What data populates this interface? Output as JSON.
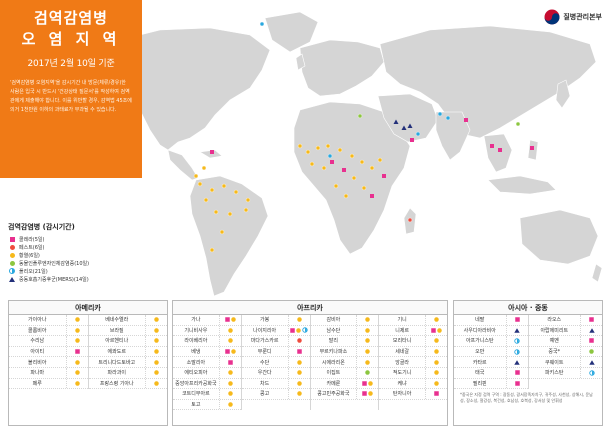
{
  "title": {
    "line1": "검역감염병",
    "line2": "오 염 지 역",
    "date": "2017년 2월 10일 기준",
    "description": "'검역감염병 오염지역'을 감시기간 내 방문(체류/경유)한 사람은 입국 시 반드시 '건강상태 질문서'를 작성하여 검역관에게 제출해야 합니다. 이를 위반할 경우, 감역법 45조에 의거 1천만원 이하의 과태료가 부과될 수 있습니다."
  },
  "logo": {
    "text": "질병관리본부"
  },
  "legend": {
    "title": "검역감염병 (감시기간)",
    "items": [
      {
        "symbol": "cholera",
        "label": "콜레라(5일)"
      },
      {
        "symbol": "pest",
        "label": "페스트(6일)"
      },
      {
        "symbol": "yellow_fever",
        "label": "황열(6일)"
      },
      {
        "symbol": "avian_flu",
        "label": "동물인플루엔자인체감염증(10일)"
      },
      {
        "symbol": "polio",
        "label": "폴리오(21일)"
      },
      {
        "symbol": "mers",
        "label": "중동호흡기증후군(MERS)(14일)"
      }
    ]
  },
  "colors": {
    "cholera": "#e8308f",
    "pest": "#ef4c3d",
    "yellow_fever": "#f6b91b",
    "avian_flu": "#8cc63f",
    "polio": "#29a8df",
    "mers": "#23307a",
    "title_panel": "#f07a16",
    "map_land": "#d5d5d5"
  },
  "americas": {
    "header": "아메리카",
    "columns": [
      [
        {
          "name": "가이아나",
          "symbols": [
            "yellow_fever"
          ]
        },
        {
          "name": "콜롬비아",
          "symbols": [
            "yellow_fever"
          ]
        },
        {
          "name": "수리남",
          "symbols": [
            "yellow_fever"
          ]
        },
        {
          "name": "아이티",
          "symbols": [
            "cholera"
          ]
        },
        {
          "name": "볼리비아",
          "symbols": [
            "yellow_fever"
          ]
        },
        {
          "name": "파나마",
          "symbols": [
            "yellow_fever"
          ]
        },
        {
          "name": "페루",
          "symbols": [
            "yellow_fever"
          ]
        }
      ],
      [
        {
          "name": "베네수엘라",
          "symbols": [
            "yellow_fever"
          ]
        },
        {
          "name": "브라질",
          "symbols": [
            "yellow_fever"
          ]
        },
        {
          "name": "아르헨티나",
          "symbols": [
            "yellow_fever"
          ]
        },
        {
          "name": "에콰도르",
          "symbols": [
            "yellow_fever"
          ]
        },
        {
          "name": "트리니다드토바고",
          "symbols": [
            "yellow_fever"
          ]
        },
        {
          "name": "파라과이",
          "symbols": [
            "yellow_fever"
          ]
        },
        {
          "name": "프랑스령 기아나",
          "symbols": [
            "yellow_fever"
          ]
        }
      ]
    ]
  },
  "africa": {
    "header": "아프리카",
    "columns": [
      [
        {
          "name": "가나",
          "symbols": [
            "cholera",
            "yellow_fever"
          ]
        },
        {
          "name": "기니비사우",
          "symbols": [
            "yellow_fever"
          ]
        },
        {
          "name": "라이베리아",
          "symbols": [
            "yellow_fever"
          ]
        },
        {
          "name": "베냉",
          "symbols": [
            "cholera",
            "yellow_fever"
          ]
        },
        {
          "name": "소말리아",
          "symbols": [
            "cholera"
          ]
        },
        {
          "name": "에티오피아",
          "symbols": [
            "yellow_fever"
          ]
        },
        {
          "name": "중앙아프리카공화국",
          "symbols": [
            "yellow_fever"
          ]
        },
        {
          "name": "코트디부아르",
          "symbols": [
            "yellow_fever"
          ]
        },
        {
          "name": "토고",
          "symbols": [
            "yellow_fever"
          ]
        }
      ],
      [
        {
          "name": "가봉",
          "symbols": [
            "yellow_fever"
          ]
        },
        {
          "name": "나이지리아",
          "symbols": [
            "cholera",
            "yellow_fever",
            "polio"
          ]
        },
        {
          "name": "마다가스카르",
          "symbols": [
            "pest"
          ]
        },
        {
          "name": "부룬디",
          "symbols": [
            "cholera"
          ]
        },
        {
          "name": "수단",
          "symbols": [
            "yellow_fever"
          ]
        },
        {
          "name": "우간다",
          "symbols": [
            "yellow_fever"
          ]
        },
        {
          "name": "차드",
          "symbols": [
            "yellow_fever"
          ]
        },
        {
          "name": "콩고",
          "symbols": [
            "yellow_fever"
          ]
        }
      ],
      [
        {
          "name": "감비아",
          "symbols": [
            "yellow_fever"
          ]
        },
        {
          "name": "남수단",
          "symbols": [
            "yellow_fever"
          ]
        },
        {
          "name": "말리",
          "symbols": [
            "yellow_fever"
          ]
        },
        {
          "name": "부르키나파소",
          "symbols": [
            "yellow_fever"
          ]
        },
        {
          "name": "시에라리온",
          "symbols": [
            "yellow_fever"
          ]
        },
        {
          "name": "이집트",
          "symbols": [
            "avian_flu"
          ]
        },
        {
          "name": "카메룬",
          "symbols": [
            "cholera",
            "yellow_fever"
          ]
        },
        {
          "name": "콩고민주공화국",
          "symbols": [
            "cholera",
            "yellow_fever"
          ]
        }
      ],
      [
        {
          "name": "기니",
          "symbols": [
            "yellow_fever"
          ]
        },
        {
          "name": "니제르",
          "symbols": [
            "cholera",
            "yellow_fever"
          ]
        },
        {
          "name": "모리타니",
          "symbols": [
            "yellow_fever"
          ]
        },
        {
          "name": "세네갈",
          "symbols": [
            "yellow_fever"
          ]
        },
        {
          "name": "앙골라",
          "symbols": [
            "yellow_fever"
          ]
        },
        {
          "name": "적도기니",
          "symbols": [
            "yellow_fever"
          ]
        },
        {
          "name": "케냐",
          "symbols": [
            "yellow_fever"
          ]
        },
        {
          "name": "탄자니아",
          "symbols": [
            "cholera"
          ]
        }
      ]
    ]
  },
  "asia": {
    "header": "아시아 · 중동",
    "columns": [
      [
        {
          "name": "네팔",
          "symbols": [
            "cholera"
          ]
        },
        {
          "name": "사우디아라비아",
          "symbols": [
            "mers"
          ]
        },
        {
          "name": "아프가니스탄",
          "symbols": [
            "polio"
          ]
        },
        {
          "name": "오만",
          "symbols": [
            "polio"
          ]
        },
        {
          "name": "카타르",
          "symbols": [
            "mers"
          ]
        },
        {
          "name": "태국",
          "symbols": [
            "cholera"
          ]
        },
        {
          "name": "필리핀",
          "symbols": [
            "cholera"
          ]
        }
      ],
      [
        {
          "name": "라오스",
          "symbols": [
            "cholera"
          ]
        },
        {
          "name": "아랍에미리트",
          "symbols": [
            "mers"
          ]
        },
        {
          "name": "예멘",
          "symbols": [
            "cholera"
          ]
        },
        {
          "name": "중국*",
          "symbols": [
            "avian_flu"
          ]
        },
        {
          "name": "쿠웨이트",
          "symbols": [
            "mers"
          ]
        },
        {
          "name": "파키스탄",
          "symbols": [
            "polio"
          ]
        }
      ]
    ],
    "footnote": "*중국은 지정 검역 구역 : 광동성, 광서장족자치구, 귀주성, 사천성, 상해시, 운남성, 장소성, 절강성, 복건성, 호남성, 호북성, 강서성 및 안휘성"
  }
}
